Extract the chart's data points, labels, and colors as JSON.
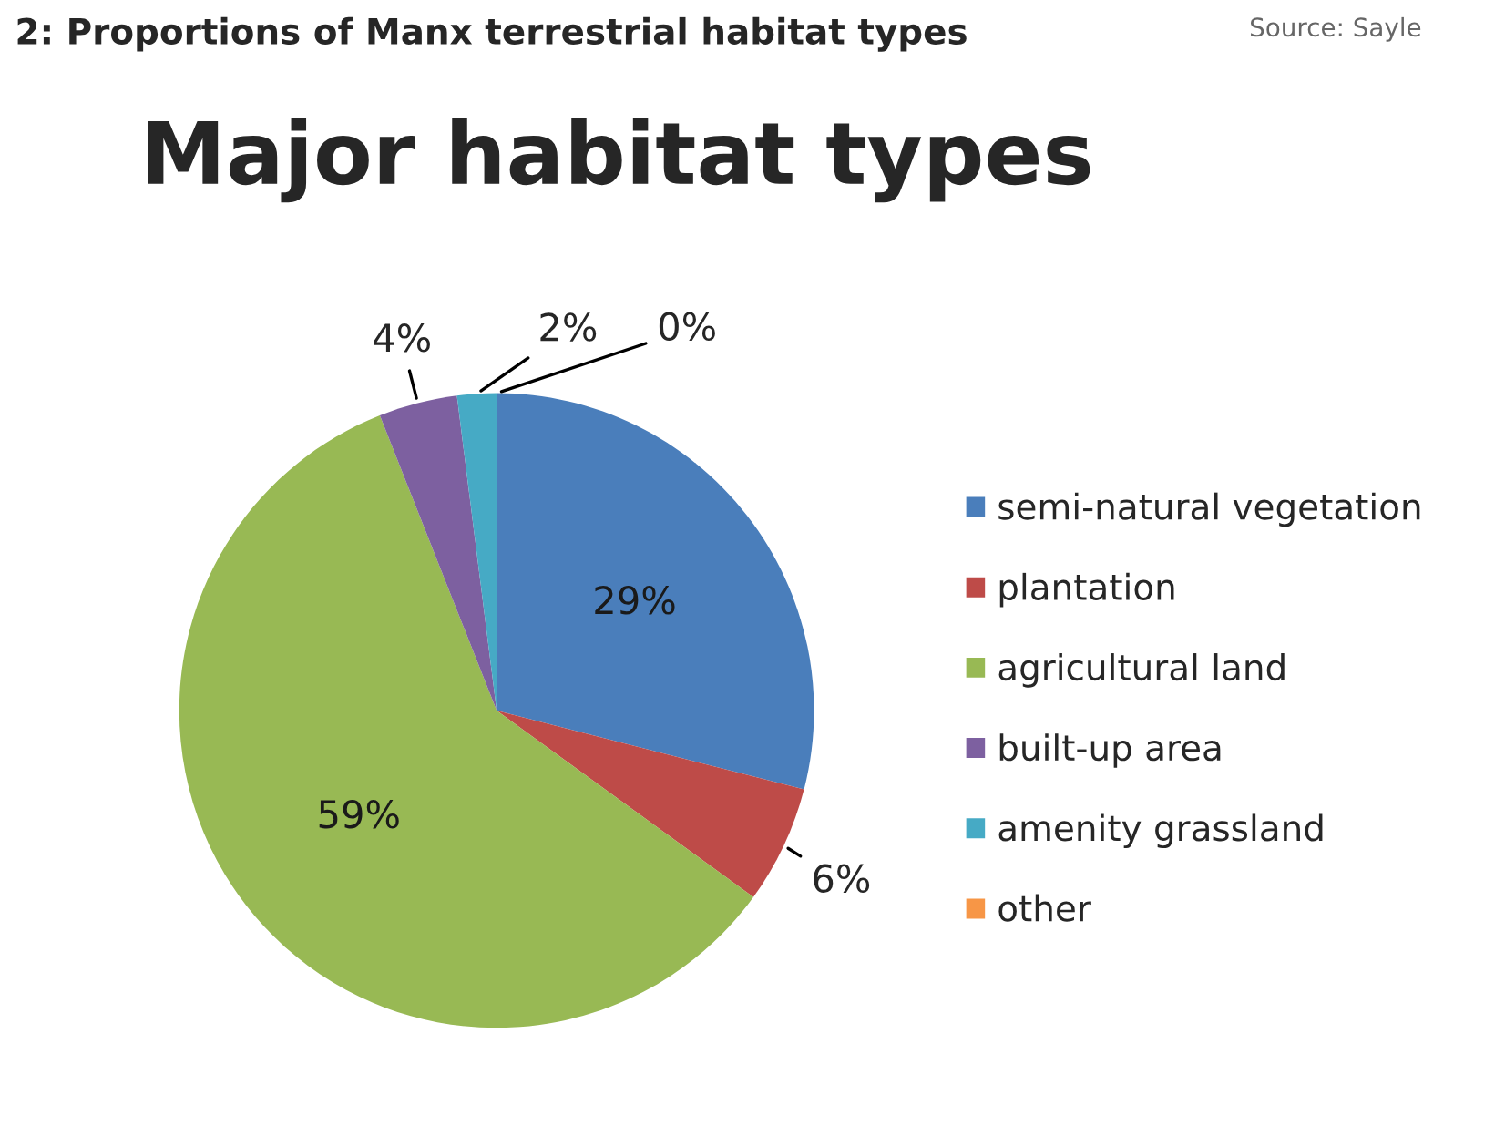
{
  "chart_data": {
    "type": "pie",
    "title": "Major habitat types",
    "categories": [
      "semi-natural vegetation",
      "plantation",
      "agricultural land",
      "built-up area",
      "amenity grassland",
      "other"
    ],
    "values": [
      29,
      6,
      59,
      4,
      2,
      0
    ],
    "value_labels": [
      "29%",
      "6%",
      "59%",
      "4%",
      "2%",
      "0%"
    ],
    "colors": [
      "#4a7ebb",
      "#be4b48",
      "#98b954",
      "#7d60a0",
      "#46aac5",
      "#f79646"
    ],
    "legend": "right",
    "annotations": [
      "2: Proportions of Manx terrestrial habitat types",
      "Source: Sayle"
    ]
  }
}
